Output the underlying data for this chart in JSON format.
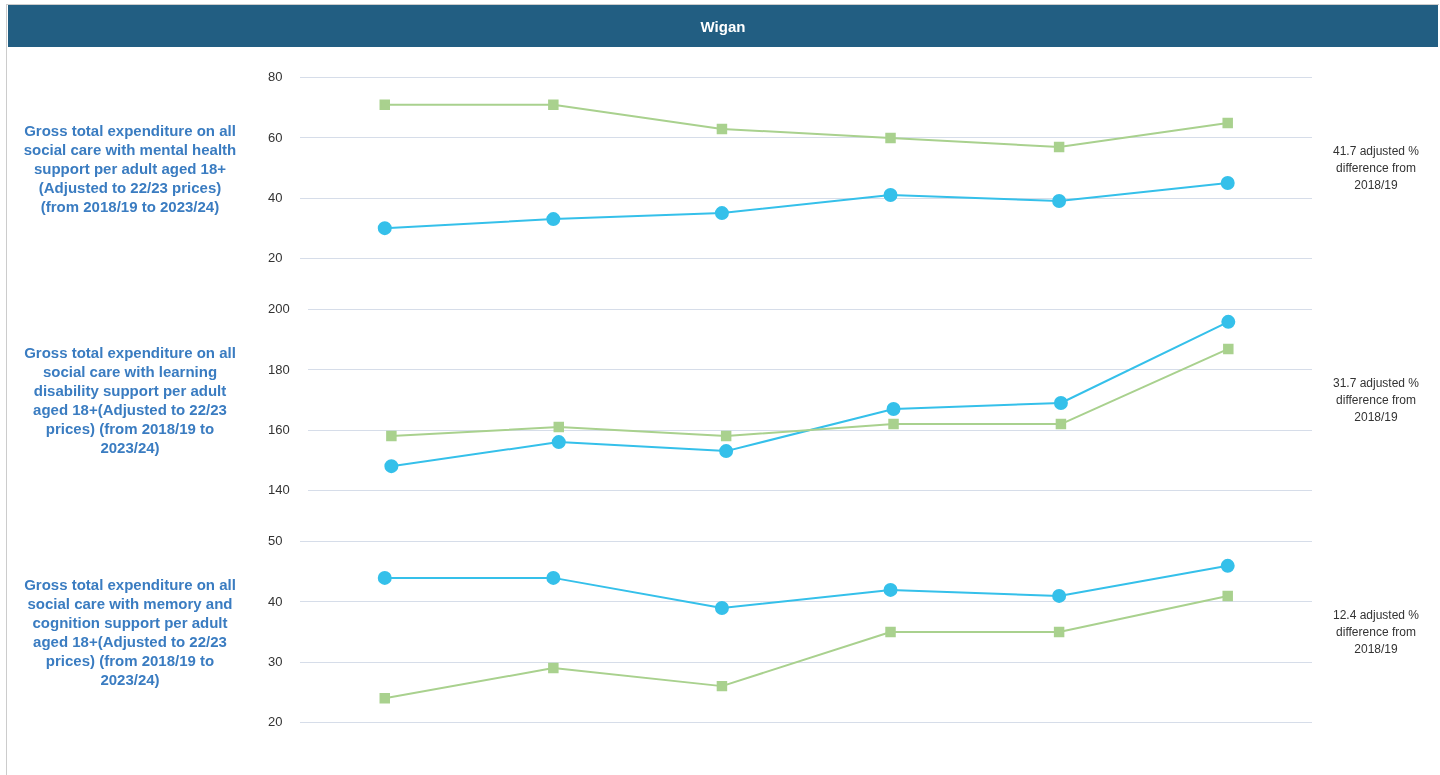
{
  "chart_data": [
    {
      "type": "line",
      "title": "Wigan",
      "ylabel": "Gross total expenditure on all social care with mental health support per adult aged 18+(Adjusted to 22/23 prices) (from 2018/19 to 2023/24)",
      "categories": [
        null,
        null,
        null,
        null,
        null,
        null
      ],
      "ylim": [
        20,
        80
      ],
      "yticks": [
        20,
        40,
        60,
        80
      ],
      "grid": "y",
      "legend": false,
      "tick_labels": "y",
      "series": [
        {
          "color": "#a9d18e",
          "marker": "square",
          "values": [
            71,
            71,
            63,
            60,
            57,
            65
          ]
        },
        {
          "color": "#35c0ea",
          "marker": "circle",
          "values": [
            30,
            33,
            35,
            41,
            39,
            45
          ]
        }
      ],
      "annotations": [
        "41.7 adjusted % difference from 2018/19"
      ]
    },
    {
      "type": "line",
      "ylabel": "Gross total expenditure on all social care with learning disability support per adult aged 18+(Adjusted to 22/23 prices) (from 2018/19 to 2023/24)",
      "categories": [
        null,
        null,
        null,
        null,
        null,
        null
      ],
      "ylim": [
        140,
        200
      ],
      "yticks": [
        140,
        160,
        180,
        200
      ],
      "grid": "y",
      "legend": false,
      "tick_labels": "y",
      "series": [
        {
          "color": "#a9d18e",
          "marker": "square",
          "values": [
            158,
            161,
            158,
            162,
            162,
            187
          ]
        },
        {
          "color": "#35c0ea",
          "marker": "circle",
          "values": [
            148,
            156,
            153,
            167,
            169,
            196
          ]
        }
      ],
      "annotations": [
        "31.7 adjusted % difference from 2018/19"
      ]
    },
    {
      "type": "line",
      "ylabel": "Gross total expenditure on all social care with memory and cognition support per adult aged 18+(Adjusted to 22/23 prices) (from 2018/19 to 2023/24)",
      "categories": [
        null,
        null,
        null,
        null,
        null,
        null
      ],
      "ylim": [
        20,
        50
      ],
      "yticks": [
        20,
        30,
        40,
        50
      ],
      "grid": "y",
      "legend": false,
      "tick_labels": "y",
      "series": [
        {
          "color": "#a9d18e",
          "marker": "square",
          "values": [
            24,
            29,
            26,
            35,
            35,
            41
          ]
        },
        {
          "color": "#35c0ea",
          "marker": "circle",
          "values": [
            44,
            44,
            39,
            42,
            41,
            46
          ]
        }
      ],
      "annotations": [
        "12.4 adjusted % difference from 2018/19"
      ]
    }
  ]
}
